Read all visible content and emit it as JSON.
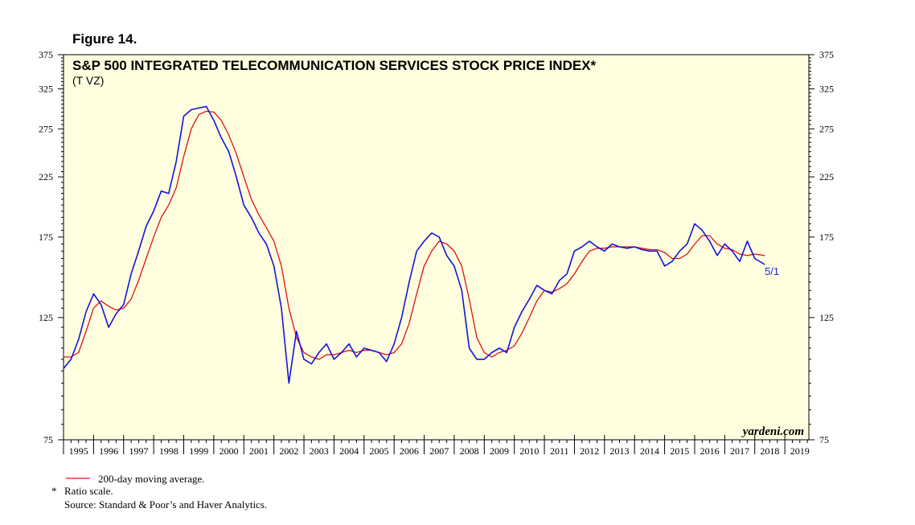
{
  "figure_label": "Figure 14.",
  "colors": {
    "plot_bg": "#ffffe0",
    "price": "#1414dc",
    "ma": "#e01010",
    "axis": "#000000"
  },
  "chart_data": {
    "type": "line",
    "title": "S&P 500 INTEGRATED TELECOMMUNICATION SERVICES STOCK PRICE INDEX*",
    "subtitle": "(T VZ)",
    "scale": "log",
    "ylim": [
      75,
      375
    ],
    "yticks": [
      75,
      125,
      175,
      225,
      275,
      325,
      375
    ],
    "xlim": [
      1995,
      2019.8
    ],
    "xtick_labels": [
      "1995",
      "1996",
      "1997",
      "1998",
      "1999",
      "2000",
      "2001",
      "2002",
      "2003",
      "2004",
      "2005",
      "2006",
      "2007",
      "2008",
      "2009",
      "2010",
      "2011",
      "2012",
      "2013",
      "2014",
      "2015",
      "2016",
      "2017",
      "2018",
      "2019"
    ],
    "end_label": "5/1",
    "source_brand": "yardeni.com",
    "series": [
      {
        "name": "S&P 500 Integrated Telecommunication Services Stock Price Index",
        "x": [
          1995.0,
          1995.25,
          1995.5,
          1995.75,
          1996.0,
          1996.25,
          1996.5,
          1996.75,
          1997.0,
          1997.25,
          1997.5,
          1997.75,
          1998.0,
          1998.25,
          1998.5,
          1998.75,
          1999.0,
          1999.25,
          1999.5,
          1999.75,
          2000.0,
          2000.25,
          2000.5,
          2000.75,
          2001.0,
          2001.25,
          2001.5,
          2001.75,
          2002.0,
          2002.25,
          2002.5,
          2002.75,
          2003.0,
          2003.25,
          2003.5,
          2003.75,
          2004.0,
          2004.25,
          2004.5,
          2004.75,
          2005.0,
          2005.25,
          2005.5,
          2005.75,
          2006.0,
          2006.25,
          2006.5,
          2006.75,
          2007.0,
          2007.25,
          2007.5,
          2007.75,
          2008.0,
          2008.25,
          2008.5,
          2008.75,
          2009.0,
          2009.25,
          2009.5,
          2009.75,
          2010.0,
          2010.25,
          2010.5,
          2010.75,
          2011.0,
          2011.25,
          2011.5,
          2011.75,
          2012.0,
          2012.25,
          2012.5,
          2012.75,
          2013.0,
          2013.25,
          2013.5,
          2013.75,
          2014.0,
          2014.25,
          2014.5,
          2014.75,
          2015.0,
          2015.25,
          2015.5,
          2015.75,
          2016.0,
          2016.25,
          2016.5,
          2016.75,
          2017.0,
          2017.25,
          2017.5,
          2017.75,
          2018.0,
          2018.33
        ],
        "values": [
          101,
          105,
          114,
          128,
          138,
          132,
          120,
          127,
          132,
          150,
          165,
          183,
          195,
          212,
          210,
          240,
          290,
          298,
          300,
          302,
          285,
          265,
          250,
          225,
          200,
          190,
          178,
          170,
          155,
          130,
          95,
          118,
          105,
          103,
          108,
          112,
          105,
          108,
          112,
          106,
          110,
          109,
          108,
          104,
          112,
          125,
          145,
          165,
          172,
          178,
          175,
          162,
          155,
          140,
          110,
          105,
          105,
          108,
          110,
          108,
          120,
          128,
          135,
          143,
          140,
          138,
          146,
          150,
          165,
          168,
          172,
          168,
          165,
          170,
          168,
          167,
          168,
          166,
          165,
          165,
          155,
          158,
          165,
          170,
          185,
          180,
          172,
          162,
          170,
          165,
          158,
          172,
          160,
          156
        ]
      },
      {
        "name": "200-day moving average.",
        "x": [
          1995.0,
          1995.25,
          1995.5,
          1995.75,
          1996.0,
          1996.25,
          1996.5,
          1996.75,
          1997.0,
          1997.25,
          1997.5,
          1997.75,
          1998.0,
          1998.25,
          1998.5,
          1998.75,
          1999.0,
          1999.25,
          1999.5,
          1999.75,
          2000.0,
          2000.25,
          2000.5,
          2000.75,
          2001.0,
          2001.25,
          2001.5,
          2001.75,
          2002.0,
          2002.25,
          2002.5,
          2002.75,
          2003.0,
          2003.25,
          2003.5,
          2003.75,
          2004.0,
          2004.25,
          2004.5,
          2004.75,
          2005.0,
          2005.25,
          2005.5,
          2005.75,
          2006.0,
          2006.25,
          2006.5,
          2006.75,
          2007.0,
          2007.25,
          2007.5,
          2007.75,
          2008.0,
          2008.25,
          2008.5,
          2008.75,
          2009.0,
          2009.25,
          2009.5,
          2009.75,
          2010.0,
          2010.25,
          2010.5,
          2010.75,
          2011.0,
          2011.25,
          2011.5,
          2011.75,
          2012.0,
          2012.25,
          2012.5,
          2012.75,
          2013.0,
          2013.25,
          2013.5,
          2013.75,
          2014.0,
          2014.25,
          2014.5,
          2014.75,
          2015.0,
          2015.25,
          2015.5,
          2015.75,
          2016.0,
          2016.25,
          2016.5,
          2016.75,
          2017.0,
          2017.25,
          2017.5,
          2017.75,
          2018.0,
          2018.33
        ],
        "values": [
          106,
          106,
          108,
          118,
          130,
          134,
          131,
          129,
          130,
          135,
          146,
          160,
          175,
          190,
          200,
          215,
          245,
          275,
          292,
          296,
          295,
          285,
          268,
          248,
          225,
          205,
          192,
          182,
          172,
          155,
          130,
          115,
          108,
          106,
          105,
          107,
          107,
          108,
          109,
          108,
          109,
          109,
          108,
          107,
          108,
          112,
          122,
          138,
          155,
          165,
          172,
          170,
          165,
          155,
          135,
          115,
          108,
          106,
          108,
          109,
          111,
          117,
          125,
          134,
          140,
          139,
          141,
          144,
          150,
          158,
          165,
          167,
          167,
          168,
          168,
          168,
          168,
          167,
          166,
          166,
          164,
          160,
          160,
          163,
          170,
          176,
          176,
          170,
          167,
          166,
          163,
          162,
          163,
          162
        ]
      }
    ]
  },
  "footnotes": {
    "legend_ma": "200-day moving average.",
    "star": "*",
    "ratio": "Ratio scale.",
    "source": "Source: Standard & Poor’s and Haver Analytics."
  }
}
